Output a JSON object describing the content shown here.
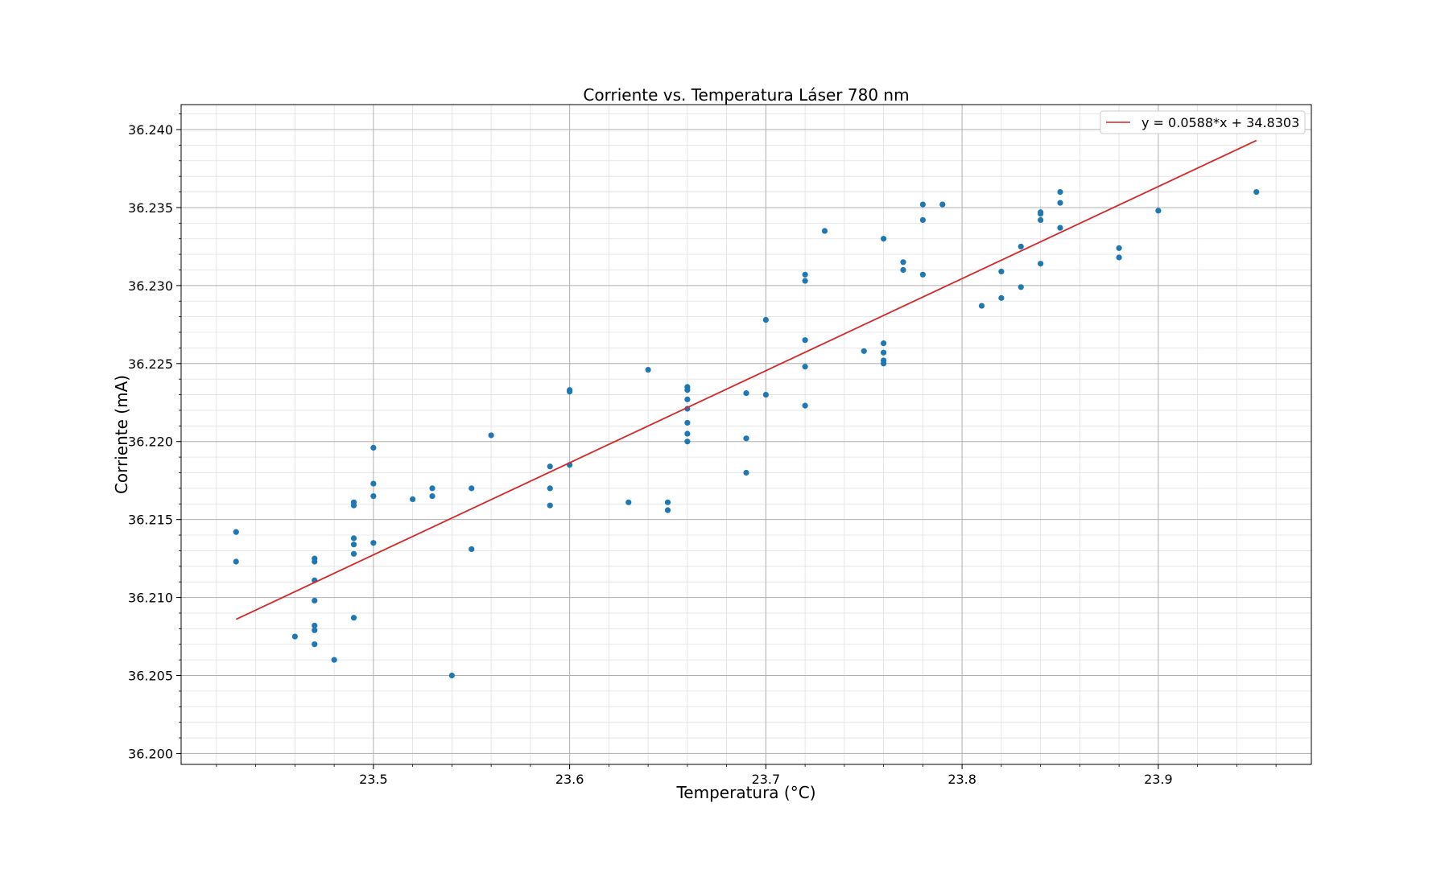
{
  "chart_data": {
    "type": "scatter",
    "title": "Corriente vs. Temperatura Láser 780 nm",
    "xlabel": "Temperatura (°C)",
    "ylabel": "Corriente (mA)",
    "xlim": [
      23.402,
      23.978
    ],
    "ylim": [
      36.1993,
      36.2416
    ],
    "xticks": [
      23.5,
      23.6,
      23.7,
      23.8,
      23.9
    ],
    "xtick_labels": [
      "23.5",
      "23.6",
      "23.7",
      "23.8",
      "23.9"
    ],
    "yticks": [
      36.2,
      36.205,
      36.21,
      36.215,
      36.22,
      36.225,
      36.23,
      36.235,
      36.24
    ],
    "ytick_labels": [
      "36.200",
      "36.205",
      "36.210",
      "36.215",
      "36.220",
      "36.225",
      "36.230",
      "36.235",
      "36.240"
    ],
    "grid": true,
    "minor_grid": true,
    "legend_position": "top-right",
    "colors": {
      "points": "#1f77b4",
      "fit": "#d62728",
      "grid": "#b0b0b0",
      "minor_grid": "#e0e0e0"
    },
    "series": [
      {
        "kind": "points",
        "color": "#1f77b4",
        "points": [
          [
            23.43,
            36.2142
          ],
          [
            23.43,
            36.2123
          ],
          [
            23.46,
            36.2075
          ],
          [
            23.47,
            36.2125
          ],
          [
            23.47,
            36.2123
          ],
          [
            23.47,
            36.2111
          ],
          [
            23.47,
            36.2098
          ],
          [
            23.47,
            36.2082
          ],
          [
            23.47,
            36.2079
          ],
          [
            23.47,
            36.207
          ],
          [
            23.48,
            36.206
          ],
          [
            23.49,
            36.2161
          ],
          [
            23.49,
            36.2159
          ],
          [
            23.49,
            36.2138
          ],
          [
            23.49,
            36.2134
          ],
          [
            23.49,
            36.2128
          ],
          [
            23.49,
            36.2087
          ],
          [
            23.5,
            36.2196
          ],
          [
            23.5,
            36.2173
          ],
          [
            23.5,
            36.2165
          ],
          [
            23.5,
            36.2135
          ],
          [
            23.52,
            36.2163
          ],
          [
            23.53,
            36.217
          ],
          [
            23.53,
            36.2165
          ],
          [
            23.54,
            36.205
          ],
          [
            23.55,
            36.217
          ],
          [
            23.55,
            36.2131
          ],
          [
            23.56,
            36.2204
          ],
          [
            23.59,
            36.2184
          ],
          [
            23.59,
            36.217
          ],
          [
            23.59,
            36.2159
          ],
          [
            23.6,
            36.2233
          ],
          [
            23.6,
            36.2232
          ],
          [
            23.6,
            36.2185
          ],
          [
            23.63,
            36.2161
          ],
          [
            23.64,
            36.2246
          ],
          [
            23.65,
            36.2161
          ],
          [
            23.65,
            36.2156
          ],
          [
            23.66,
            36.2235
          ],
          [
            23.66,
            36.2233
          ],
          [
            23.66,
            36.2227
          ],
          [
            23.66,
            36.2221
          ],
          [
            23.66,
            36.2212
          ],
          [
            23.66,
            36.2205
          ],
          [
            23.66,
            36.22
          ],
          [
            23.69,
            36.2231
          ],
          [
            23.69,
            36.2202
          ],
          [
            23.69,
            36.218
          ],
          [
            23.7,
            36.2278
          ],
          [
            23.7,
            36.223
          ],
          [
            23.72,
            36.2307
          ],
          [
            23.72,
            36.2303
          ],
          [
            23.72,
            36.2265
          ],
          [
            23.72,
            36.2248
          ],
          [
            23.72,
            36.2223
          ],
          [
            23.73,
            36.2335
          ],
          [
            23.75,
            36.2258
          ],
          [
            23.76,
            36.233
          ],
          [
            23.76,
            36.2263
          ],
          [
            23.76,
            36.2257
          ],
          [
            23.76,
            36.2252
          ],
          [
            23.76,
            36.225
          ],
          [
            23.77,
            36.2315
          ],
          [
            23.77,
            36.231
          ],
          [
            23.78,
            36.2352
          ],
          [
            23.78,
            36.2342
          ],
          [
            23.78,
            36.2307
          ],
          [
            23.79,
            36.2352
          ],
          [
            23.81,
            36.2287
          ],
          [
            23.82,
            36.2309
          ],
          [
            23.82,
            36.2292
          ],
          [
            23.83,
            36.2325
          ],
          [
            23.83,
            36.2299
          ],
          [
            23.84,
            36.2347
          ],
          [
            23.84,
            36.2346
          ],
          [
            23.84,
            36.2342
          ],
          [
            23.84,
            36.2314
          ],
          [
            23.85,
            36.236
          ],
          [
            23.85,
            36.2353
          ],
          [
            23.85,
            36.2337
          ],
          [
            23.88,
            36.2324
          ],
          [
            23.88,
            36.2318
          ],
          [
            23.9,
            36.2348
          ],
          [
            23.95,
            36.236
          ]
        ]
      },
      {
        "kind": "fit",
        "name": "y = 0.0588*x + 34.8303",
        "color": "#d62728",
        "slope": 0.0588,
        "intercept": 34.8303,
        "x_range": [
          23.43,
          23.95
        ],
        "y_range": [
          36.2086,
          36.2393
        ]
      }
    ]
  }
}
